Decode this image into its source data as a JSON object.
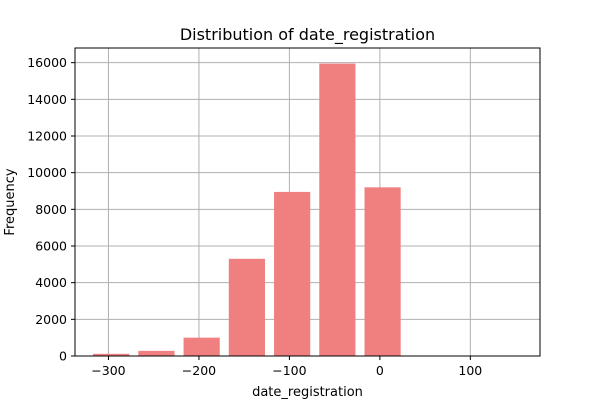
{
  "chart_data": {
    "type": "bar",
    "title": "Distribution of date_registration",
    "xlabel": "date_registration",
    "ylabel": "Frequency",
    "bar_color": "#f08080",
    "grid": true,
    "xlim": [
      -337,
      177
    ],
    "ylim": [
      0,
      16800
    ],
    "xticks": [
      -300,
      -200,
      -100,
      0,
      100
    ],
    "xtick_labels": [
      "−300",
      "−200",
      "−100",
      "0",
      "100"
    ],
    "yticks": [
      0,
      2000,
      4000,
      6000,
      8000,
      10000,
      12000,
      14000,
      16000
    ],
    "ytick_labels": [
      "0",
      "2000",
      "4000",
      "6000",
      "8000",
      "10000",
      "12000",
      "14000",
      "16000"
    ],
    "bin_edges": [
      -322,
      -272,
      -222,
      -172,
      -122,
      -72,
      -22,
      28,
      78,
      128,
      162
    ],
    "bar_width_fraction": 0.8,
    "values": [
      120,
      280,
      1000,
      5300,
      8950,
      15950,
      9200,
      0,
      0,
      0
    ]
  }
}
